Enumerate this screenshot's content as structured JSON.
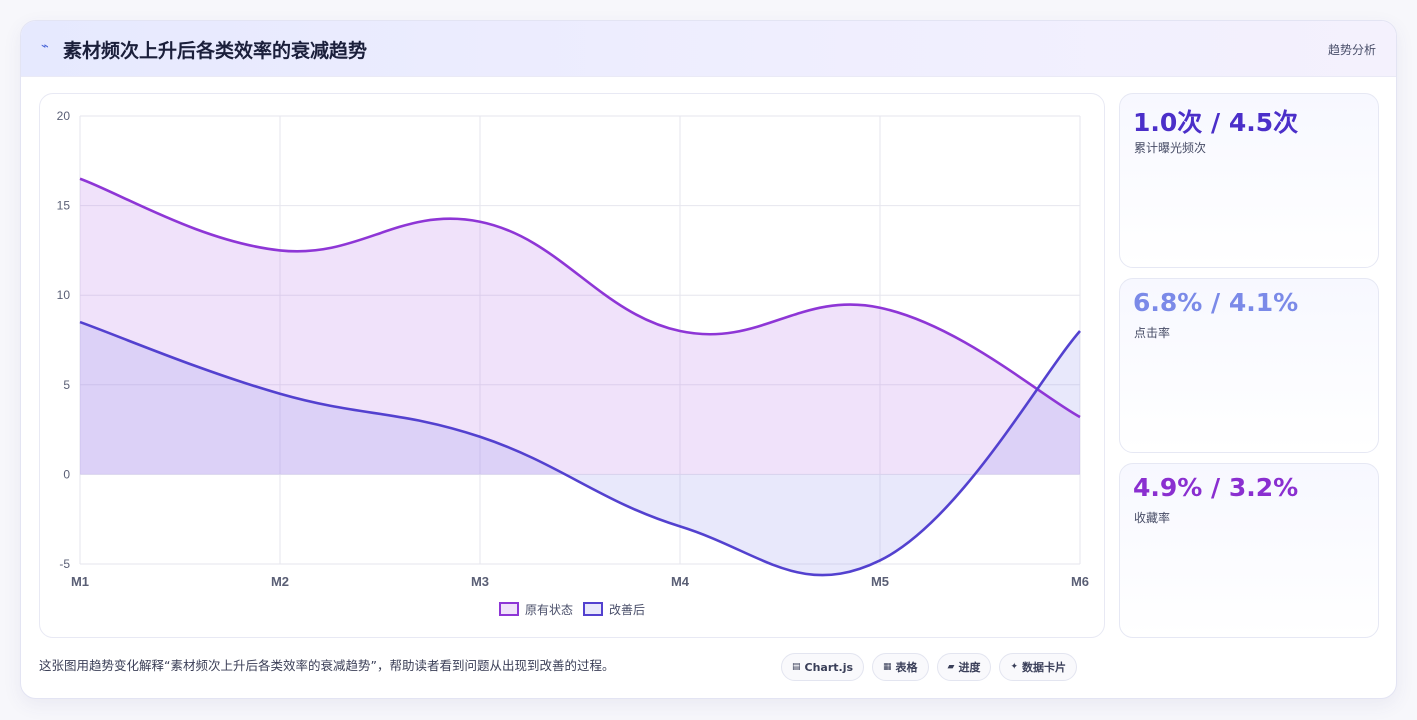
{
  "header": {
    "icon": "sparkline-icon",
    "title": "素材频次上升后各类效率的衰减趋势",
    "tag": "趋势分析"
  },
  "chart_data": {
    "type": "line",
    "area": true,
    "smooth": true,
    "categories": [
      "M1",
      "M2",
      "M3",
      "M4",
      "M5",
      "M6"
    ],
    "ylim": [
      -5,
      20
    ],
    "yticks": [
      20,
      15,
      10,
      5,
      0,
      -5
    ],
    "grid": true,
    "legend_position": "bottom",
    "series": [
      {
        "name": "原有状态",
        "values": [
          16.5,
          12.5,
          14.1,
          8.0,
          9.3,
          3.2
        ],
        "color": "#8e36d6",
        "fill": "rgba(186, 125, 234, 0.22)"
      },
      {
        "name": "改善后",
        "values": [
          8.5,
          4.5,
          2.1,
          -2.9,
          -4.8,
          8.0
        ],
        "color": "#5341cf",
        "fill": "rgba(150, 150, 236, 0.22)"
      }
    ]
  },
  "stats": [
    {
      "value": "1.0次 / 4.5次",
      "label": "累计曝光频次",
      "color": "#4b2fc9"
    },
    {
      "value": "6.8% / 4.1%",
      "label": "点击率",
      "color": "#7b8ae8"
    },
    {
      "value": "4.9% / 3.2%",
      "label": "收藏率",
      "color": "#8a2fd0"
    }
  ],
  "footer": {
    "text": "这张图用趋势变化解释“素材频次上升后各类效率的衰减趋势”，帮助读者看到问题从出现到改善的过程。",
    "chips": [
      {
        "icon": "chart-icon",
        "label": "Chart.js"
      },
      {
        "icon": "table-icon",
        "label": "表格"
      },
      {
        "icon": "progress-icon",
        "label": "进度"
      },
      {
        "icon": "card-icon",
        "label": "数据卡片"
      }
    ]
  }
}
